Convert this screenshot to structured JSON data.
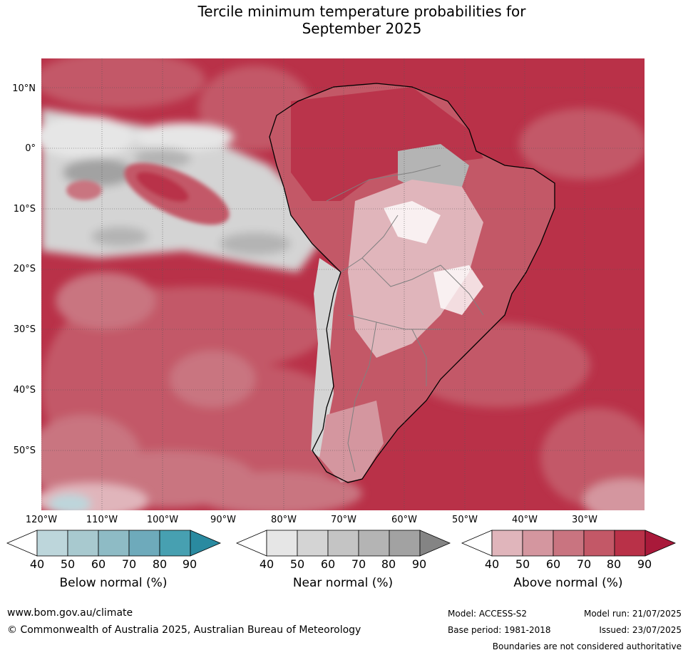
{
  "title": {
    "line1": "Tercile minimum temperature probabilities for",
    "line2": "September 2025"
  },
  "map": {
    "lat_labels": [
      "10°N",
      "0°",
      "10°S",
      "20°S",
      "30°S",
      "40°S",
      "50°S"
    ],
    "lon_labels": [
      "120°W",
      "110°W",
      "100°W",
      "90°W",
      "80°W",
      "70°W",
      "60°W",
      "50°W",
      "40°W",
      "30°W"
    ],
    "colors": {
      "above": [
        "#e0b5bb",
        "#d4969f",
        "#c97480",
        "#c35867",
        "#b93148",
        "#a9193a"
      ],
      "near": [
        "#e6e6e6",
        "#d4d4d4",
        "#c4c4c4",
        "#b4b4b4",
        "#a2a2a2",
        "#848484"
      ],
      "below": [
        "#bdd6db",
        "#a8c9cf",
        "#8ebbc5",
        "#6eaabb",
        "#47a0b1",
        "#2a8aa0"
      ]
    }
  },
  "colorbars": [
    {
      "title": "Below normal (%)",
      "ticks": [
        "40",
        "50",
        "60",
        "70",
        "80",
        "90"
      ]
    },
    {
      "title": "Near normal (%)",
      "ticks": [
        "40",
        "50",
        "60",
        "70",
        "80",
        "90"
      ]
    },
    {
      "title": "Above normal (%)",
      "ticks": [
        "40",
        "50",
        "60",
        "70",
        "80",
        "90"
      ]
    }
  ],
  "footer": {
    "website": "www.bom.gov.au/climate",
    "copyright": "© Commonwealth of Australia 2025, Australian Bureau of Meteorology",
    "model": "Model: ACCESS-S2",
    "model_run": "Model run: 21/07/2025",
    "base_period": "Base period: 1981-2018",
    "issued": "Issued: 23/07/2025",
    "disclaimer": "Boundaries are not considered authoritative"
  }
}
